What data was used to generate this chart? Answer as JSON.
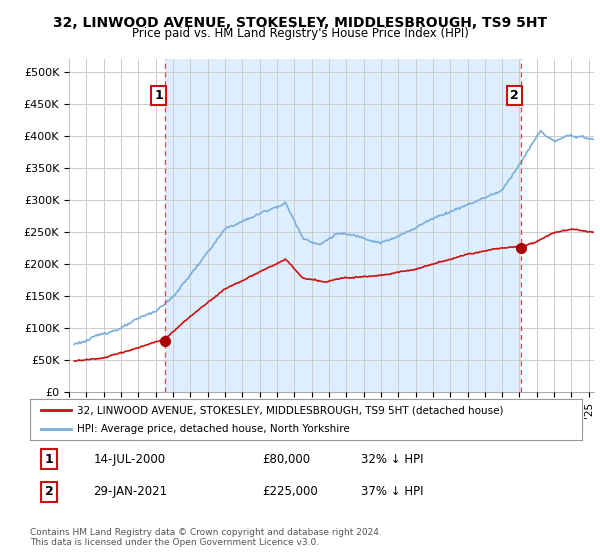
{
  "title": "32, LINWOOD AVENUE, STOKESLEY, MIDDLESBROUGH, TS9 5HT",
  "subtitle": "Price paid vs. HM Land Registry's House Price Index (HPI)",
  "ylabel_ticks": [
    "£0",
    "£50K",
    "£100K",
    "£150K",
    "£200K",
    "£250K",
    "£300K",
    "£350K",
    "£400K",
    "£450K",
    "£500K"
  ],
  "ytick_vals": [
    0,
    50000,
    100000,
    150000,
    200000,
    250000,
    300000,
    350000,
    400000,
    450000,
    500000
  ],
  "ylim": [
    0,
    520000
  ],
  "xlim_start": 1995.3,
  "xlim_end": 2025.3,
  "hpi_color": "#7aaedb",
  "price_color": "#cc1111",
  "dashed_color": "#dd4444",
  "marker_color": "#aa0000",
  "shade_color": "#ddeeff",
  "point1_x": 2000.54,
  "point1_y": 80000,
  "point2_x": 2021.08,
  "point2_y": 225000,
  "legend_line1": "32, LINWOOD AVENUE, STOKESLEY, MIDDLESBROUGH, TS9 5HT (detached house)",
  "legend_line2": "HPI: Average price, detached house, North Yorkshire",
  "footer": "Contains HM Land Registry data © Crown copyright and database right 2024.\nThis data is licensed under the Open Government Licence v3.0.",
  "background_color": "#ffffff",
  "grid_color": "#cccccc"
}
